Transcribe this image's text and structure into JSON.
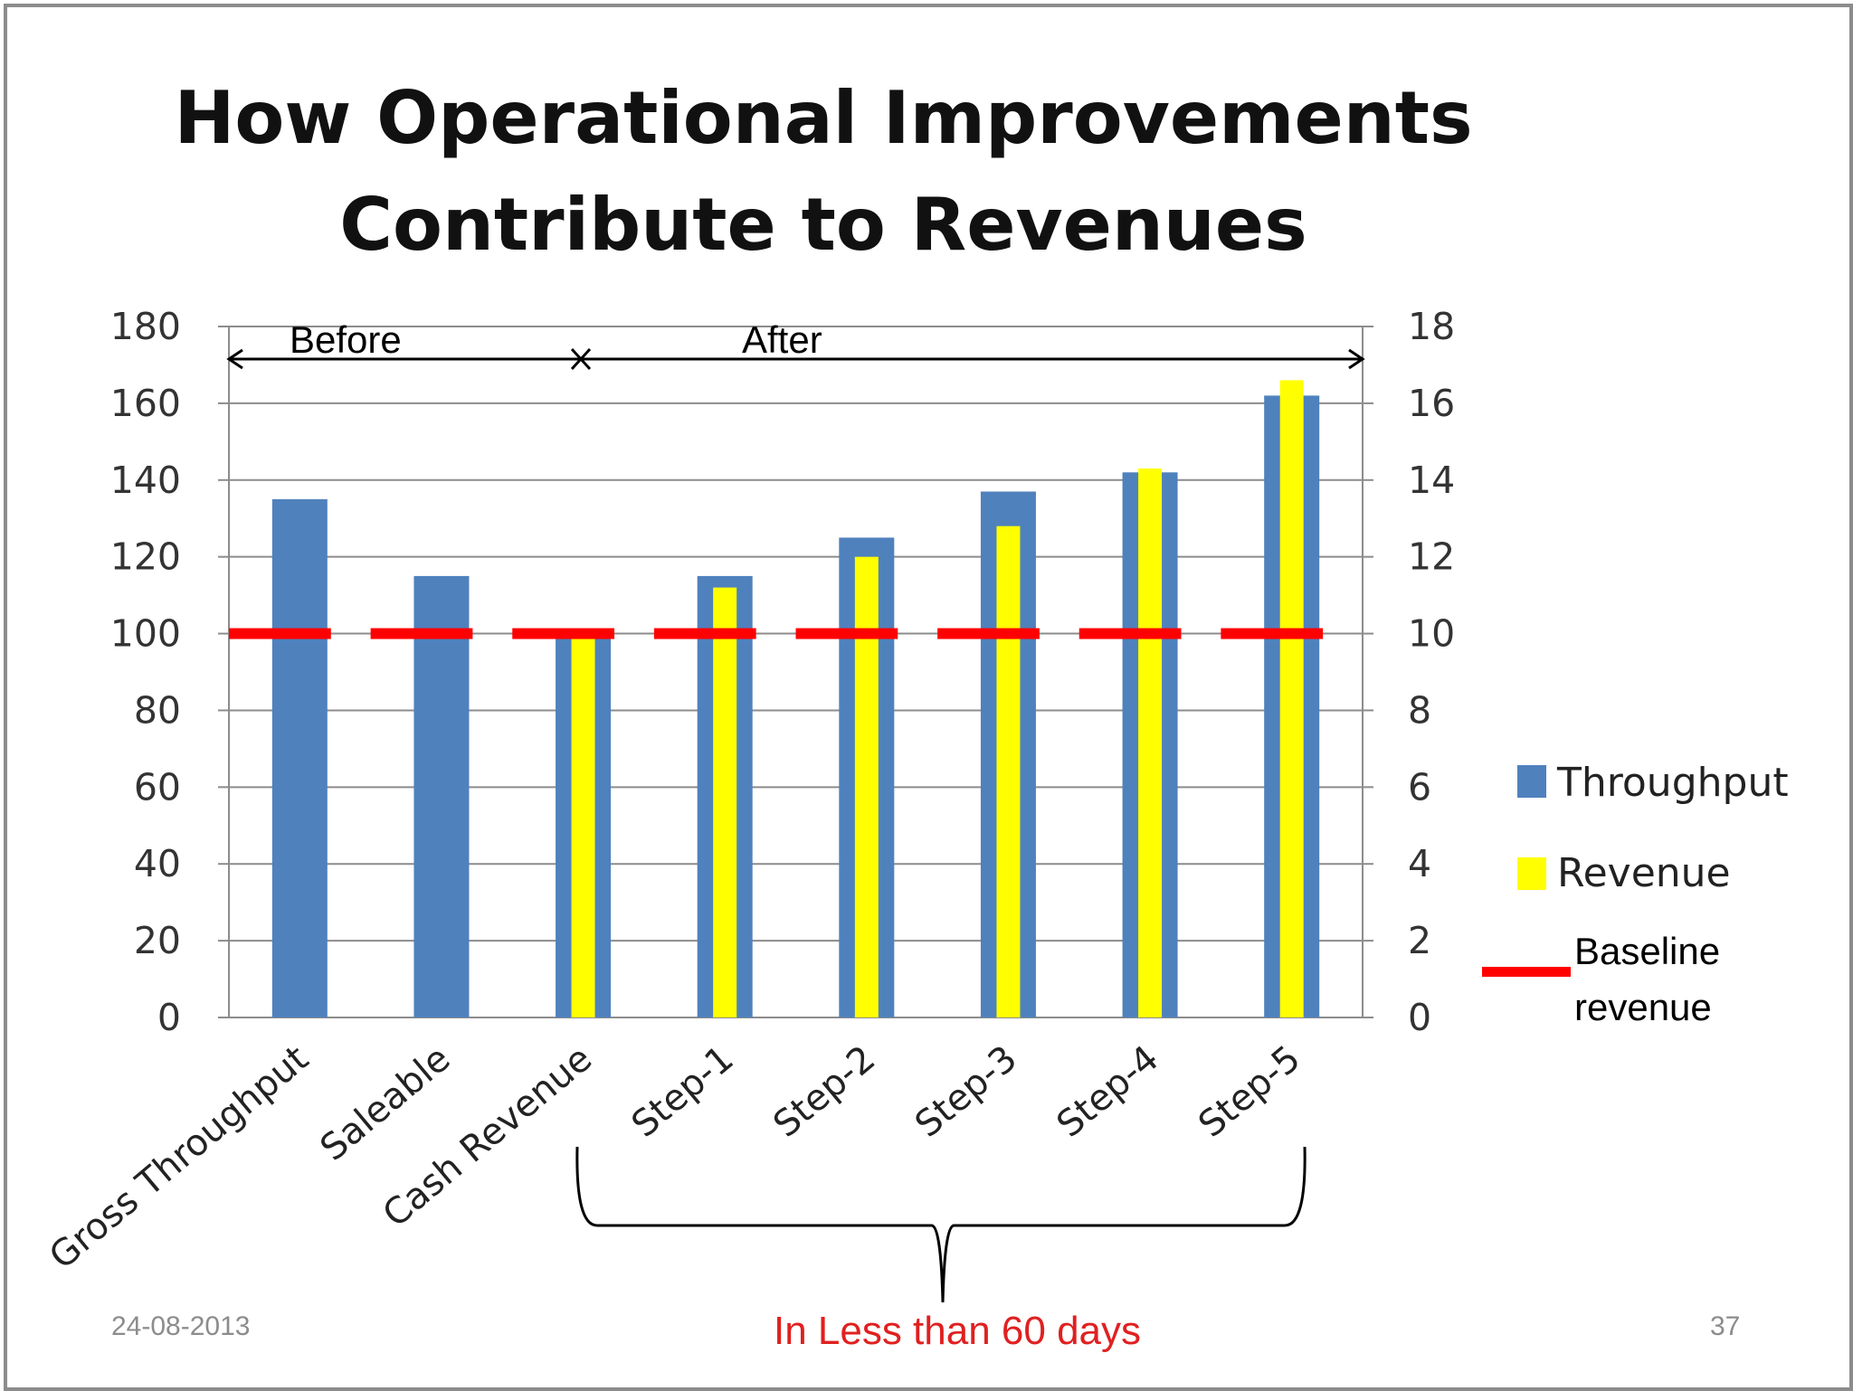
{
  "slide": {
    "date": "24-08-2013",
    "page_number": "37",
    "note": "In Less than 60 days"
  },
  "colors": {
    "throughput": "#4f81bd",
    "revenue": "#ffff00",
    "baseline": "#ff0000",
    "grid": "#8c8c8c"
  },
  "chart_data": {
    "type": "bar",
    "title_lines": [
      "How Operational Improvements",
      "Contribute to Revenues"
    ],
    "categories": [
      "Gross Throughput",
      "Saleable",
      "Cash Revenue",
      "Step-1",
      "Step-2",
      "Step-3",
      "Step-4",
      "Step-5"
    ],
    "series": [
      {
        "name": "Throughput",
        "axis": "left",
        "values": [
          135,
          115,
          100,
          115,
          125,
          137,
          142,
          162
        ]
      },
      {
        "name": "Revenue",
        "axis": "right",
        "values": [
          null,
          null,
          10,
          11.2,
          12,
          12.8,
          14.3,
          16.6
        ]
      }
    ],
    "baseline": {
      "name": "Baseline revenue",
      "value": 100,
      "style": "dashed"
    },
    "ylim_left": [
      0,
      180
    ],
    "yticks_left": [
      0,
      20,
      40,
      60,
      80,
      100,
      120,
      140,
      160,
      180
    ],
    "ylim_right": [
      0,
      18
    ],
    "yticks_right": [
      0,
      2,
      4,
      6,
      8,
      10,
      12,
      14,
      16,
      18
    ],
    "grid": true,
    "legend_position": "right",
    "legend": [
      "Throughput",
      "Revenue",
      "Baseline revenue"
    ],
    "legend_baseline_lines": [
      "Baseline",
      "revenue"
    ],
    "annotations": {
      "before": "Before",
      "after": "After"
    }
  }
}
